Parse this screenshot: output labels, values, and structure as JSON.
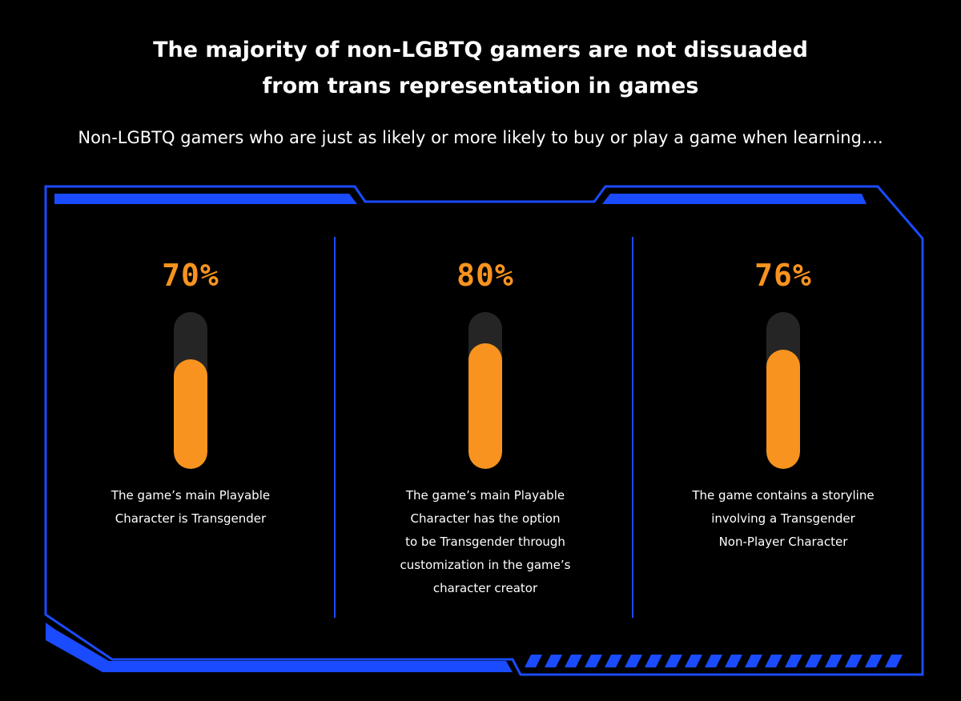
{
  "title_lines": [
    "The majority of non-LGBTQ gamers are not dissuaded",
    "from trans representation in games"
  ],
  "subtitle": "Non-LGBTQ gamers who are just as likely or more likely to buy or play a game when learning....",
  "colors": {
    "background": "#000000",
    "frame_blue": "#1A4BFF",
    "bar_orange": "#F7931E",
    "track_gray": "#252525",
    "text_white": "#FFFFFF"
  },
  "chart_data": {
    "type": "bar",
    "unit": "%",
    "ylim": [
      0,
      100
    ],
    "categories": [
      "The game’s main Playable Character is Transgender",
      "The game’s main Playable Character has the option to be Transgender through customization in the game’s character creator",
      "The game contains a storyline involving a Transgender Non-Player Character"
    ],
    "values": [
      70,
      80,
      76
    ],
    "value_labels": [
      "70%",
      "80%",
      "76%"
    ],
    "category_lines": [
      [
        "The game’s main Playable",
        "Character is Transgender"
      ],
      [
        "The game’s main Playable",
        "Character has the option",
        "to be Transgender through",
        "customization in the game’s",
        "character creator"
      ],
      [
        "The game contains a storyline",
        "involving a Transgender",
        "Non-Player Character"
      ]
    ]
  }
}
